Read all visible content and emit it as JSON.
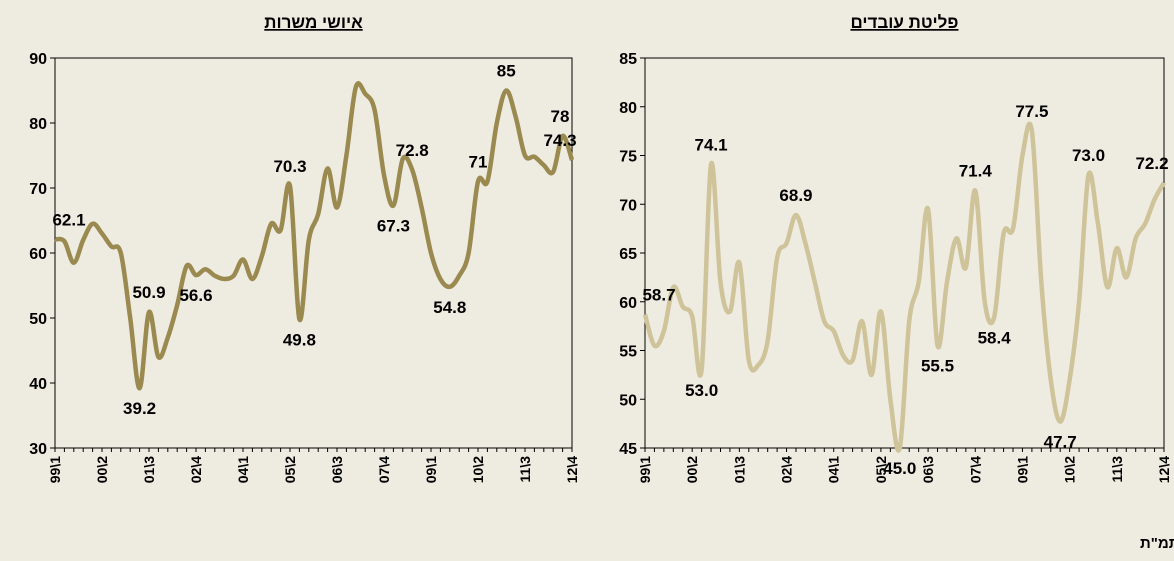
{
  "chart_data": [
    {
      "type": "line",
      "title": "איושי משרות",
      "categories": [
        "99\\1",
        null,
        null,
        null,
        null,
        "00\\2",
        null,
        null,
        null,
        null,
        "01\\3",
        null,
        null,
        null,
        null,
        "02\\4",
        null,
        null,
        null,
        null,
        "04\\1",
        null,
        null,
        null,
        null,
        "05\\2",
        null,
        null,
        null,
        null,
        "06\\3",
        null,
        null,
        null,
        null,
        "07\\4",
        null,
        null,
        null,
        null,
        "09\\1",
        null,
        null,
        null,
        null,
        "10\\2",
        null,
        null,
        null,
        null,
        "11\\3",
        null,
        null,
        null,
        null,
        "12\\4"
      ],
      "series": [
        {
          "color": "#9a8a50",
          "values": [
            62.1,
            61.8,
            58.5,
            62,
            64.5,
            63,
            61,
            60,
            50,
            39.2,
            50.9,
            44,
            47,
            52,
            58,
            56.6,
            57.5,
            56.5,
            56,
            56.5,
            59,
            56,
            59.5,
            64.5,
            63.5,
            70.3,
            49.8,
            62,
            66,
            73,
            67,
            75,
            85.5,
            84.5,
            82,
            72,
            67.3,
            74.5,
            72.8,
            67,
            60,
            56,
            54.8,
            56.5,
            60,
            71,
            71,
            80,
            85,
            81,
            75,
            74.8,
            73.5,
            72.5,
            78,
            74.3
          ],
          "value_labels": [
            "62.1",
            null,
            null,
            null,
            null,
            null,
            null,
            null,
            null,
            "39.2",
            "50.9",
            null,
            null,
            null,
            null,
            "56.6",
            null,
            null,
            null,
            null,
            null,
            null,
            null,
            null,
            null,
            "70.3",
            "49.8",
            null,
            null,
            null,
            null,
            null,
            null,
            null,
            null,
            null,
            "67.3",
            null,
            "72.8",
            null,
            null,
            null,
            "54.8",
            null,
            null,
            "71",
            null,
            null,
            "85",
            null,
            null,
            null,
            null,
            null,
            "78",
            "74.3"
          ]
        }
      ],
      "ylim": [
        30,
        90
      ],
      "yticks": [
        30,
        40,
        50,
        60,
        70,
        80,
        90
      ]
    },
    {
      "type": "line",
      "title": "פליטת עובדים",
      "categories": [
        "99\\1",
        null,
        null,
        null,
        null,
        "00\\2",
        null,
        null,
        null,
        null,
        "01\\3",
        null,
        null,
        null,
        null,
        "02\\4",
        null,
        null,
        null,
        null,
        "04\\1",
        null,
        null,
        null,
        null,
        "05\\2",
        null,
        null,
        null,
        null,
        "06\\3",
        null,
        null,
        null,
        null,
        "07\\4",
        null,
        null,
        null,
        null,
        "09\\1",
        null,
        null,
        null,
        null,
        "10\\2",
        null,
        null,
        null,
        null,
        "11\\3",
        null,
        null,
        null,
        null,
        "12\\4"
      ],
      "series": [
        {
          "color": "#cfc39a",
          "values": [
            58.7,
            55.5,
            57,
            61.5,
            59.5,
            58.5,
            53,
            74.1,
            62,
            59,
            64,
            54,
            53.5,
            56,
            64.5,
            66,
            68.9,
            66,
            62,
            58,
            57,
            54.5,
            54,
            58,
            52.5,
            59,
            50,
            45,
            58,
            62,
            69.5,
            55.5,
            62,
            66.5,
            63.5,
            71.4,
            60,
            58.4,
            67,
            67.5,
            75,
            77.5,
            62,
            52,
            47.7,
            52,
            60,
            73,
            68,
            61.5,
            65.5,
            62.5,
            66.5,
            68,
            70.5,
            72.2
          ],
          "value_labels": [
            "58.7",
            null,
            null,
            null,
            null,
            null,
            "53.0",
            "74.1",
            null,
            null,
            null,
            null,
            null,
            null,
            null,
            null,
            "68.9",
            null,
            null,
            null,
            null,
            null,
            null,
            null,
            null,
            null,
            null,
            "45.0",
            null,
            null,
            null,
            "55.5",
            null,
            null,
            null,
            "71.4",
            null,
            "58.4",
            null,
            null,
            null,
            "77.5",
            null,
            null,
            "47.7",
            null,
            null,
            "73.0",
            null,
            null,
            null,
            null,
            null,
            null,
            null,
            "72.2"
          ]
        }
      ],
      "ylim": [
        45,
        85
      ],
      "yticks": [
        45,
        50,
        55,
        60,
        65,
        70,
        75,
        80,
        85
      ]
    }
  ],
  "source": "מקור: מינהל מחקר וכלכלה, משרד התמ\"ת"
}
